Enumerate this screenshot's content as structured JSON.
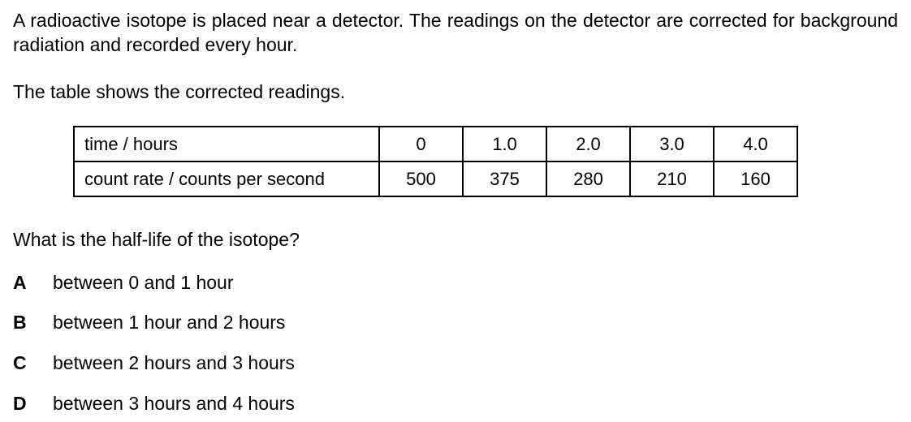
{
  "intro": "A radioactive isotope is placed near a detector. The readings on the detector are corrected for background radiation and recorded every hour.",
  "table_lead": "The table shows the corrected readings.",
  "table": {
    "rows": [
      {
        "label": "time / hours",
        "values": [
          "0",
          "1.0",
          "2.0",
          "3.0",
          "4.0"
        ]
      },
      {
        "label": "count rate / counts per second",
        "values": [
          "500",
          "375",
          "280",
          "210",
          "160"
        ]
      }
    ]
  },
  "question": "What is the half-life of the isotope?",
  "options": [
    {
      "letter": "A",
      "text": "between 0 and 1 hour"
    },
    {
      "letter": "B",
      "text": "between 1 hour and 2 hours"
    },
    {
      "letter": "C",
      "text": "between 2 hours and 3 hours"
    },
    {
      "letter": "D",
      "text": "between 3 hours and 4 hours"
    }
  ]
}
